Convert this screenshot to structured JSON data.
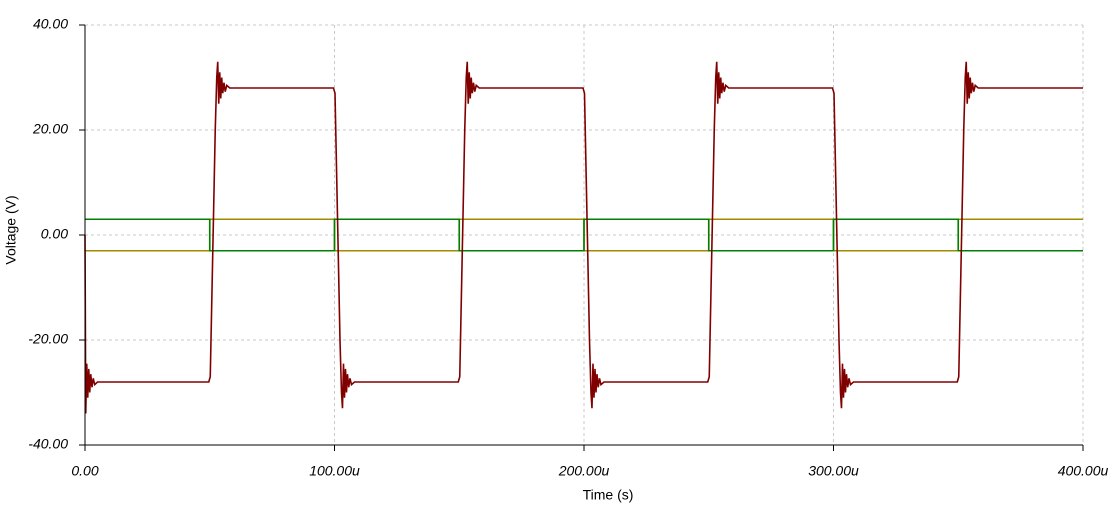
{
  "chart_data": {
    "type": "line",
    "xlabel": "Time (s)",
    "ylabel": "Voltage (V)",
    "xlim": [
      0,
      0.0004
    ],
    "ylim": [
      -40,
      40
    ],
    "xticks": [
      {
        "value": 0,
        "label": "0.00"
      },
      {
        "value": 0.0001,
        "label": "100.00u"
      },
      {
        "value": 0.0002,
        "label": "200.00u"
      },
      {
        "value": 0.0003,
        "label": "300.00u"
      },
      {
        "value": 0.0004,
        "label": "400.00u"
      }
    ],
    "yticks": [
      {
        "value": 40,
        "label": "40.00"
      },
      {
        "value": 20,
        "label": "20.00"
      },
      {
        "value": 0,
        "label": "0.00"
      },
      {
        "value": -20,
        "label": "-20.00"
      },
      {
        "value": -40,
        "label": "-40.00"
      }
    ],
    "grid": true,
    "series": [
      {
        "color": "#a08a00",
        "x": [
          0,
          5e-05,
          5e-05,
          0.0001,
          0.0001,
          0.00015,
          0.00015,
          0.0002,
          0.0002,
          0.00025,
          0.00025,
          0.0003,
          0.0003,
          0.00035,
          0.00035,
          0.0004
        ],
        "values": [
          -3,
          -3,
          3,
          3,
          -3,
          -3,
          3,
          3,
          -3,
          -3,
          3,
          3,
          -3,
          -3,
          3,
          3
        ]
      },
      {
        "color": "#008000",
        "x": [
          0,
          5e-05,
          5e-05,
          0.0001,
          0.0001,
          0.00015,
          0.00015,
          0.0002,
          0.0002,
          0.00025,
          0.00025,
          0.0003,
          0.0003,
          0.00035,
          0.00035,
          0.0004
        ],
        "values": [
          3,
          3,
          -3,
          -3,
          3,
          3,
          -3,
          -3,
          3,
          3,
          -3,
          -3,
          3,
          3,
          -3,
          -3
        ]
      },
      {
        "color": "#800000",
        "x": [
          0,
          3e-07,
          7e-07,
          1.1e-06,
          1.5e-06,
          1.9e-06,
          2.3e-06,
          2.8e-06,
          3.3e-06,
          3.9e-06,
          5e-06,
          4.96e-05,
          5.02e-05,
          5.22e-05,
          5.28e-05,
          5.32e-05,
          5.36e-05,
          5.4e-05,
          5.44e-05,
          5.48e-05,
          5.52e-05,
          5.57e-05,
          5.62e-05,
          5.68e-05,
          5.8e-05,
          9.96e-05,
          0.0001002,
          0.0001022,
          0.0001028,
          0.0001032,
          0.0001036,
          0.000104,
          0.0001044,
          0.0001048,
          0.0001052,
          0.0001057,
          0.0001062,
          0.0001068,
          0.000108,
          0.0001496,
          0.0001502,
          0.0001522,
          0.0001528,
          0.0001532,
          0.0001536,
          0.000154,
          0.0001544,
          0.0001548,
          0.0001552,
          0.0001557,
          0.0001562,
          0.0001568,
          0.000158,
          0.0001996,
          0.0002002,
          0.0002022,
          0.0002028,
          0.0002032,
          0.0002036,
          0.000204,
          0.0002044,
          0.0002048,
          0.0002052,
          0.0002057,
          0.0002062,
          0.0002068,
          0.000208,
          0.0002496,
          0.0002502,
          0.0002522,
          0.0002528,
          0.0002532,
          0.0002536,
          0.000254,
          0.0002544,
          0.0002548,
          0.0002552,
          0.0002557,
          0.0002562,
          0.0002568,
          0.000258,
          0.0002996,
          0.0003002,
          0.0003022,
          0.0003028,
          0.0003032,
          0.0003036,
          0.000304,
          0.0003044,
          0.0003048,
          0.0003052,
          0.0003057,
          0.0003062,
          0.0003068,
          0.000308,
          0.0003496,
          0.0003502,
          0.0003522,
          0.0003528,
          0.0003532,
          0.0003536,
          0.000354,
          0.0003544,
          0.0003548,
          0.0003552,
          0.0003557,
          0.0003562,
          0.0003568,
          0.000358,
          0.0004
        ],
        "values": [
          0,
          -34,
          -24.5,
          -31,
          -25.5,
          -30,
          -26.5,
          -29,
          -27.3,
          -28.5,
          -28,
          -28,
          -27,
          20,
          30,
          33,
          25,
          31,
          26,
          30,
          27,
          29,
          27.3,
          28.5,
          28,
          28,
          27,
          -20,
          -30,
          -33,
          -24.5,
          -31,
          -25.5,
          -30,
          -26.5,
          -29,
          -27.3,
          -28.5,
          -28,
          -28,
          -27,
          20,
          30,
          33,
          25,
          31,
          26,
          30,
          27,
          29,
          27.3,
          28.5,
          28,
          28,
          27,
          -20,
          -30,
          -33,
          -24.5,
          -31,
          -25.5,
          -30,
          -26.5,
          -29,
          -27.3,
          -28.5,
          -28,
          -28,
          -27,
          20,
          30,
          33,
          25,
          31,
          26,
          30,
          27,
          29,
          27.3,
          28.5,
          28,
          28,
          27,
          -20,
          -30,
          -33,
          -24.5,
          -31,
          -25.5,
          -30,
          -26.5,
          -29,
          -27.3,
          -28.5,
          -28,
          -28,
          -27,
          20,
          30,
          33,
          25,
          31,
          26,
          30,
          27,
          29,
          27.3,
          28.5,
          28,
          28
        ]
      }
    ]
  }
}
